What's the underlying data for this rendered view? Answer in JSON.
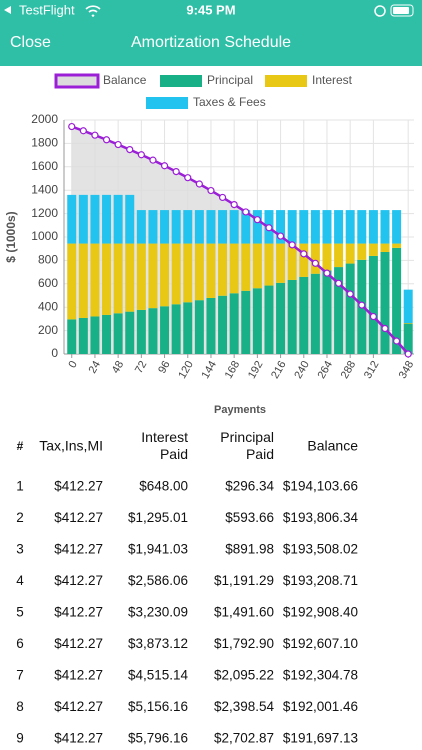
{
  "status_bar": {
    "app": "TestFlight",
    "time": "9:45 PM"
  },
  "nav": {
    "back": "Close",
    "title": "Amortization Schedule"
  },
  "chart_data": {
    "type": "bar",
    "stacked": true,
    "ylabel": "$ (1000s)",
    "xlabel": "Payments",
    "x": [
      0,
      12,
      24,
      36,
      48,
      60,
      72,
      84,
      96,
      108,
      120,
      132,
      144,
      156,
      168,
      180,
      192,
      204,
      216,
      228,
      240,
      252,
      264,
      276,
      288,
      300,
      312,
      324,
      336,
      348
    ],
    "xlim": [
      -8,
      354
    ],
    "xticks": [
      0,
      24,
      48,
      72,
      96,
      120,
      144,
      168,
      192,
      216,
      240,
      264,
      288,
      312,
      348
    ],
    "ylim": [
      0,
      2000
    ],
    "yticks": [
      0,
      200,
      400,
      600,
      800,
      1000,
      1200,
      1400,
      1600,
      1800,
      2000
    ],
    "grid": true,
    "series": [
      {
        "name": "Balance",
        "type": "line",
        "color": "#9b1fd6",
        "fill": "#dcdcdc",
        "values": [
          1944,
          1908,
          1870,
          1831,
          1790,
          1747,
          1703,
          1657,
          1609,
          1559,
          1507,
          1453,
          1397,
          1338,
          1277,
          1214,
          1148,
          1079,
          1008,
          933,
          856,
          775,
          691,
          604,
          513,
          418,
          320,
          218,
          111,
          0
        ]
      },
      {
        "name": "Principal",
        "type": "bar",
        "color": "#18b187",
        "values": [
          296,
          308,
          321,
          334,
          348,
          362,
          377,
          392,
          408,
          425,
          442,
          460,
          479,
          498,
          519,
          540,
          562,
          585,
          608,
          633,
          659,
          686,
          714,
          743,
          773,
          805,
          838,
          872,
          907,
          260
        ]
      },
      {
        "name": "Interest",
        "type": "bar",
        "color": "#e9c715",
        "values": [
          648,
          636,
          623,
          610,
          596,
          582,
          567,
          552,
          536,
          519,
          502,
          484,
          465,
          446,
          425,
          404,
          382,
          359,
          336,
          311,
          285,
          258,
          230,
          201,
          171,
          139,
          106,
          72,
          37,
          5
        ]
      },
      {
        "name": "Taxes & Fees",
        "type": "bar",
        "color": "#22c3ee",
        "values": [
          416,
          416,
          416,
          416,
          416,
          416,
          286,
          286,
          286,
          286,
          286,
          286,
          286,
          286,
          286,
          286,
          286,
          286,
          286,
          286,
          286,
          286,
          286,
          286,
          286,
          286,
          286,
          286,
          286,
          285
        ]
      }
    ]
  },
  "table": {
    "header": [
      "#",
      "Tax,Ins,MI",
      "Interest Paid",
      "Principal Paid",
      "Balance"
    ],
    "rows": [
      [
        "1",
        "$412.27",
        "$648.00",
        "$296.34",
        "$194,103.66"
      ],
      [
        "2",
        "$412.27",
        "$1,295.01",
        "$593.66",
        "$193,806.34"
      ],
      [
        "3",
        "$412.27",
        "$1,941.03",
        "$891.98",
        "$193,508.02"
      ],
      [
        "4",
        "$412.27",
        "$2,586.06",
        "$1,191.29",
        "$193,208.71"
      ],
      [
        "5",
        "$412.27",
        "$3,230.09",
        "$1,491.60",
        "$192,908.40"
      ],
      [
        "6",
        "$412.27",
        "$3,873.12",
        "$1,792.90",
        "$192,607.10"
      ],
      [
        "7",
        "$412.27",
        "$4,515.14",
        "$2,095.22",
        "$192,304.78"
      ],
      [
        "8",
        "$412.27",
        "$5,156.16",
        "$2,398.54",
        "$192,001.46"
      ],
      [
        "9",
        "$412.27",
        "$5,796.16",
        "$2,702.87",
        "$191,697.13"
      ]
    ]
  }
}
